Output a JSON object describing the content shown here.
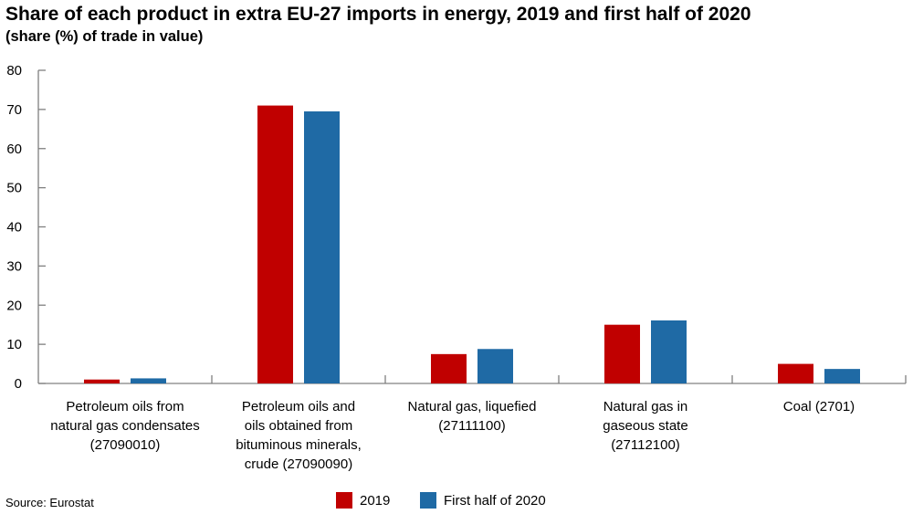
{
  "chart_data": {
    "type": "bar",
    "title": "Share of each product in extra EU-27 imports in energy, 2019 and first half of 2020",
    "subtitle": "(share (%) of trade in value)",
    "source": "Source: Eurostat",
    "categories": [
      [
        "Petroleum oils from",
        "natural gas condensates",
        "(27090010)"
      ],
      [
        "Petroleum oils and",
        "oils obtained from",
        "bituminous minerals,",
        "crude (27090090)"
      ],
      [
        "Natural gas, liquefied",
        "(27111100)"
      ],
      [
        "Natural gas in",
        "gaseous state",
        "(27112100)"
      ],
      [
        "Coal (2701)"
      ]
    ],
    "series": [
      {
        "name": "2019",
        "color": "#c00000",
        "values": [
          1.0,
          71.0,
          7.5,
          15.0,
          5.0
        ]
      },
      {
        "name": "First half of 2020",
        "color": "#1f6aa5",
        "values": [
          1.3,
          69.5,
          8.8,
          16.1,
          3.7
        ]
      }
    ],
    "ylim": [
      0,
      80
    ],
    "yticks": [
      0,
      10,
      20,
      30,
      40,
      50,
      60,
      70,
      80
    ],
    "grid": false,
    "legend": "bottom"
  }
}
